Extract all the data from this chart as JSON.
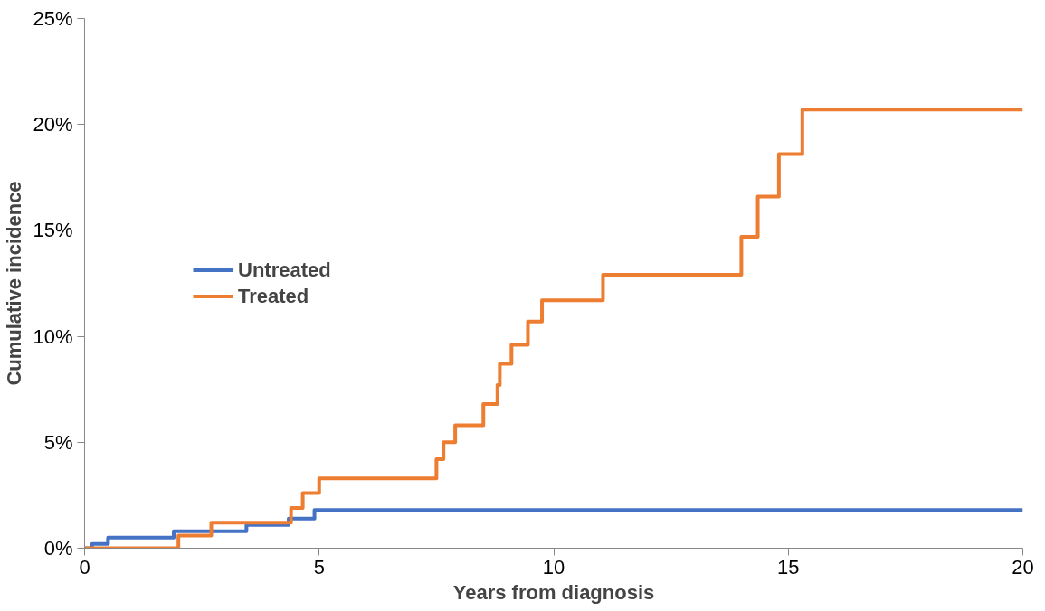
{
  "chart_data": {
    "type": "step",
    "xlabel": "Years from diagnosis",
    "ylabel": "Cumulative incidence",
    "xlim": [
      0,
      20
    ],
    "xticks": [
      0,
      5,
      10,
      15,
      20
    ],
    "ylim": [
      0,
      25
    ],
    "yticks": [
      {
        "value": 0,
        "label": "0%"
      },
      {
        "value": 5,
        "label": "5%"
      },
      {
        "value": 10,
        "label": "10%"
      },
      {
        "value": 15,
        "label": "15%"
      },
      {
        "value": 20,
        "label": "20%"
      },
      {
        "value": 25,
        "label": "25%"
      }
    ],
    "grid": false,
    "legend": "left",
    "line_style": "solid",
    "marker": "none",
    "series": [
      {
        "name": "Untreated",
        "color": "#4472c4",
        "x": [
          0,
          0.16,
          0.5,
          1.9,
          3.45,
          4.35,
          4.9,
          20
        ],
        "values": [
          0,
          0.2,
          0.5,
          0.8,
          1.1,
          1.4,
          1.8,
          1.8
        ]
      },
      {
        "name": "Treated",
        "color": "#ed7d31",
        "x": [
          0,
          2.0,
          2.7,
          4.4,
          4.65,
          5.0,
          7.5,
          7.65,
          7.9,
          8.5,
          8.8,
          8.85,
          9.1,
          9.45,
          9.75,
          11.05,
          14.0,
          14.35,
          14.8,
          15.3,
          20
        ],
        "values": [
          0,
          0.6,
          1.2,
          1.9,
          2.6,
          3.3,
          4.2,
          5.0,
          5.8,
          6.8,
          7.7,
          8.7,
          9.6,
          10.7,
          11.7,
          12.9,
          14.7,
          16.6,
          18.6,
          20.7,
          20.7
        ]
      }
    ]
  }
}
